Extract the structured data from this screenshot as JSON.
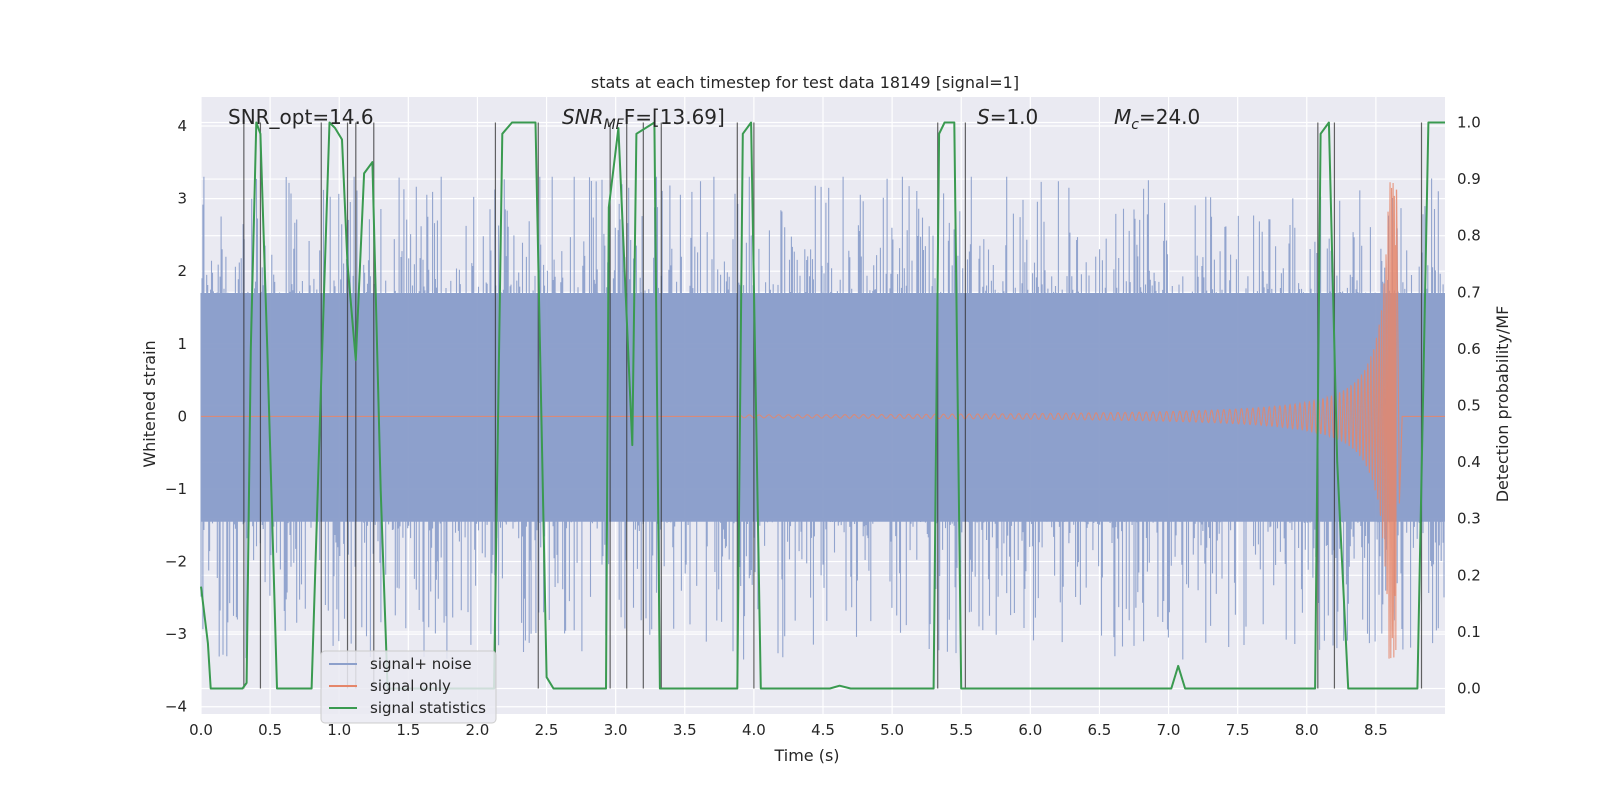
{
  "chart_data": {
    "type": "line",
    "title": "stats at each timestep for test data 18149 [signal=1]",
    "xlabel": "Time (s)",
    "ylabel_left": "Whitened strain",
    "ylabel_right": "Detection probability/MF",
    "xlim": [
      0,
      9.0
    ],
    "ylim_left": [
      -4.1,
      4.4
    ],
    "ylim_right": [
      -0.045,
      1.045
    ],
    "x_ticks": [
      "0.0",
      "0.5",
      "1.0",
      "1.5",
      "2.0",
      "2.5",
      "3.0",
      "3.5",
      "4.0",
      "4.5",
      "5.0",
      "5.5",
      "6.0",
      "6.5",
      "7.0",
      "7.5",
      "8.0",
      "8.5"
    ],
    "y_ticks_left": [
      "4",
      "3",
      "2",
      "1",
      "0",
      "−1",
      "−2",
      "−3",
      "−4"
    ],
    "y_ticks_right": [
      "1.0",
      "0.9",
      "0.8",
      "0.7",
      "0.6",
      "0.5",
      "0.4",
      "0.3",
      "0.2",
      "0.1",
      "0.0"
    ],
    "grid": true,
    "legend_position": "lower-left",
    "annotations": {
      "snr_opt": "SNR_opt=14.6",
      "snr_mf_sym": "SNR",
      "snr_mf_sub": "MF",
      "snr_mf_val": "F=[13.69]",
      "s_sym": "S",
      "s_val": "=1.0",
      "mc_sym": "M",
      "mc_sub": "c",
      "mc_val": "=24.0"
    },
    "colors": {
      "noise": "#8da0cb",
      "signal": "#e5866a",
      "stats": "#3a9a50",
      "vlines": "#333333",
      "background": "#eaeaf2",
      "grid": "#ffffff"
    },
    "series": [
      {
        "name": "signal+ noise",
        "description_range": [
          -3.6,
          3.3
        ],
        "envelope": {
          "x": [
            0,
            9.0
          ],
          "lo": [
            -1.45,
            -1.45
          ],
          "hi": [
            1.7,
            1.7
          ]
        }
      },
      {
        "name": "signal only",
        "chirp": {
          "start": 3.9,
          "merger": 8.65,
          "amp_start": 0.02,
          "amp_peak": 3.35
        }
      },
      {
        "name": "signal statistics",
        "axis": "right",
        "x": [
          0.0,
          0.05,
          0.07,
          0.3,
          0.33,
          0.36,
          0.4,
          0.43,
          0.48,
          0.55,
          0.8,
          0.87,
          0.93,
          0.97,
          1.02,
          1.06,
          1.12,
          1.18,
          1.24,
          1.3,
          1.35,
          1.4,
          2.12,
          2.18,
          2.25,
          2.42,
          2.5,
          2.55,
          2.93,
          2.95,
          3.02,
          3.12,
          3.15,
          3.28,
          3.32,
          3.42,
          3.5,
          3.65,
          3.83,
          3.88,
          3.92,
          3.98,
          4.05,
          4.55,
          4.62,
          4.7,
          5.3,
          5.34,
          5.38,
          5.45,
          5.5,
          5.6,
          7.02,
          7.07,
          7.12,
          7.2,
          7.8,
          8.06,
          8.1,
          8.16,
          8.22,
          8.3,
          8.8,
          8.84,
          8.88,
          9.0
        ],
        "y": [
          0.18,
          0.08,
          0.0,
          0.0,
          0.01,
          0.6,
          1.0,
          0.98,
          0.6,
          0.0,
          0.0,
          0.55,
          1.0,
          0.99,
          0.97,
          0.75,
          0.58,
          0.91,
          0.93,
          0.35,
          0.0,
          0.0,
          0.0,
          0.98,
          1.0,
          1.0,
          0.02,
          0.0,
          0.0,
          0.85,
          0.99,
          0.43,
          0.98,
          1.0,
          0.0,
          0.0,
          0.0,
          0.0,
          0.0,
          0.0,
          0.98,
          1.0,
          0.0,
          0.0,
          0.005,
          0.0,
          0.0,
          0.98,
          1.0,
          1.0,
          0.0,
          0.0,
          0.0,
          0.04,
          0.0,
          0.0,
          0.0,
          0.0,
          0.98,
          1.0,
          0.4,
          0.0,
          0.0,
          0.5,
          1.0,
          1.0
        ]
      }
    ],
    "vlines": [
      0.31,
      0.43,
      0.87,
      1.06,
      1.12,
      1.25,
      2.13,
      2.44,
      2.96,
      3.08,
      3.2,
      3.33,
      3.88,
      4.0,
      5.33,
      5.53,
      8.08,
      8.2,
      8.83
    ]
  }
}
